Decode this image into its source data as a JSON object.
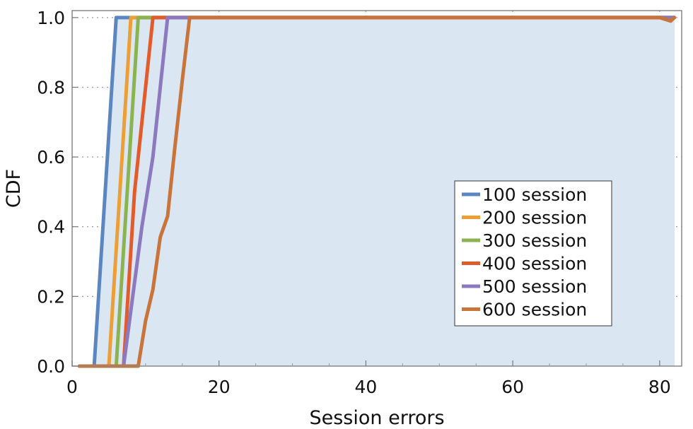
{
  "chart_data": {
    "type": "line",
    "title": "",
    "xlabel": "Session errors",
    "ylabel": "CDF",
    "xlim": [
      0,
      83
    ],
    "ylim": [
      0,
      1.02
    ],
    "xticks": [
      0,
      20,
      40,
      60,
      80
    ],
    "yticks": [
      0.0,
      0.2,
      0.4,
      0.6,
      0.8,
      1.0
    ],
    "xtick_labels": [
      "0",
      "20",
      "40",
      "60",
      "80"
    ],
    "ytick_labels": [
      "0.0",
      "0.2",
      "0.4",
      "0.6",
      "0.8",
      "1.0"
    ],
    "grid": true,
    "filled": true,
    "legend_position": "lower-right",
    "series": [
      {
        "name": "100 session",
        "color": "#5b86c0",
        "fill": "#dbe6f3",
        "points": [
          [
            1,
            0
          ],
          [
            3,
            0
          ],
          [
            6,
            1
          ],
          [
            82,
            1
          ]
        ]
      },
      {
        "name": "200 session",
        "color": "#ec9f34",
        "fill": "#f6e3c8",
        "points": [
          [
            1,
            0
          ],
          [
            5,
            0
          ],
          [
            8,
            1
          ],
          [
            82,
            1
          ]
        ]
      },
      {
        "name": "300 session",
        "color": "#8bb34f",
        "fill": "#e0eccf",
        "points": [
          [
            1,
            0
          ],
          [
            6,
            0
          ],
          [
            9,
            1
          ],
          [
            82,
            1
          ]
        ]
      },
      {
        "name": "400 session",
        "color": "#e35b2b",
        "fill": "#f0cfb8",
        "points": [
          [
            1,
            0
          ],
          [
            7,
            0
          ],
          [
            8.5,
            0.5
          ],
          [
            11,
            1
          ],
          [
            82,
            1
          ]
        ]
      },
      {
        "name": "500 session",
        "color": "#8c79bf",
        "fill": "#d9c7cc",
        "points": [
          [
            1,
            0
          ],
          [
            7,
            0
          ],
          [
            9.5,
            0.4
          ],
          [
            11,
            0.6
          ],
          [
            13,
            1
          ],
          [
            82,
            1
          ]
        ]
      },
      {
        "name": "600 session",
        "color": "#c8743b",
        "fill": "#c49a79",
        "points": [
          [
            1,
            0
          ],
          [
            9,
            0
          ],
          [
            10,
            0.13
          ],
          [
            11,
            0.22
          ],
          [
            12,
            0.37
          ],
          [
            13,
            0.43
          ],
          [
            14,
            0.63
          ],
          [
            15,
            0.82
          ],
          [
            16,
            1
          ],
          [
            80,
            1
          ],
          [
            81.5,
            0.99
          ],
          [
            82,
            1
          ]
        ]
      }
    ]
  }
}
